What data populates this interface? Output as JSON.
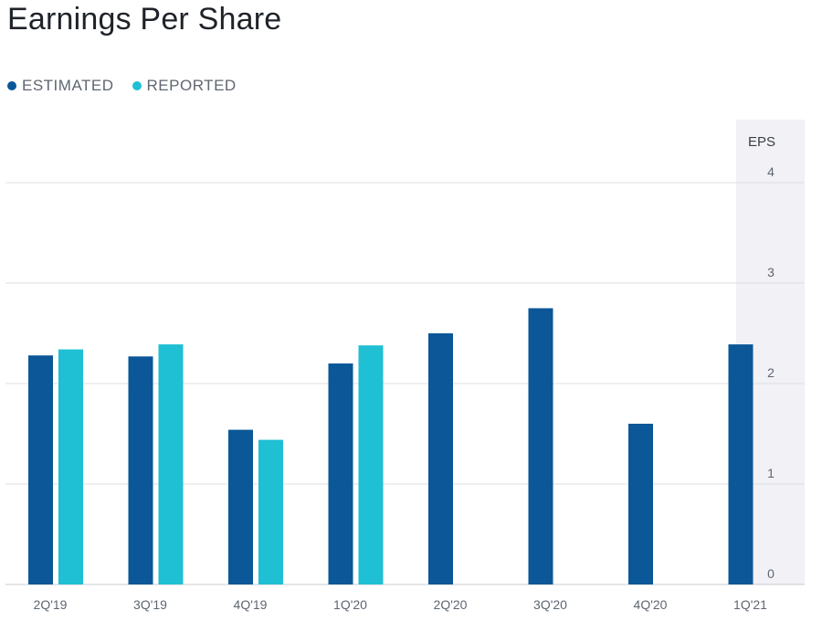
{
  "title": "Earnings Per Share",
  "legend": {
    "estimated": "ESTIMATED",
    "reported": "REPORTED"
  },
  "colors": {
    "estimated": "#0b5798",
    "reported": "#1fbfd4",
    "grid": "#dcdfe3",
    "axis_text": "#5f6670",
    "highlight": "#f1f1f6"
  },
  "chart_data": {
    "type": "bar",
    "title": "Earnings Per Share",
    "ylabel": "EPS",
    "xlabel": "",
    "ylim": [
      0,
      4
    ],
    "yticks": [
      0,
      1,
      2,
      3,
      4
    ],
    "grid": true,
    "legend_position": "top-left",
    "highlighted_category": "1Q'21",
    "categories": [
      "2Q'19",
      "3Q'19",
      "4Q'19",
      "1Q'20",
      "2Q'20",
      "3Q'20",
      "4Q'20",
      "1Q'21"
    ],
    "series": [
      {
        "name": "ESTIMATED",
        "values": [
          2.28,
          2.27,
          1.54,
          2.2,
          2.5,
          2.75,
          1.6,
          2.39
        ]
      },
      {
        "name": "REPORTED",
        "values": [
          2.34,
          2.39,
          1.44,
          2.38,
          null,
          null,
          null,
          null
        ]
      }
    ]
  }
}
